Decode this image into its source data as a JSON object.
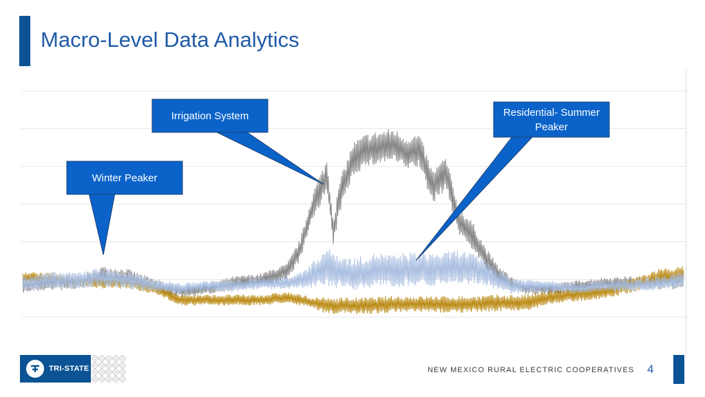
{
  "slide": {
    "title": "Macro-Level Data Analytics",
    "footer_text": "NEW MEXICO RURAL ELECTRIC COOPERATIVES",
    "page_number": "4",
    "logo_text": "TRI-STATE",
    "accent_color": "#0b5394"
  },
  "chart_data": {
    "type": "line",
    "title": "",
    "xlabel": "",
    "ylabel": "",
    "grid": true,
    "legend": "none",
    "ylim": [
      0,
      8
    ],
    "x_range": [
      0,
      100
    ],
    "series": [
      {
        "color": "#808080",
        "x": [
          0,
          4,
          8,
          12,
          16,
          20,
          24,
          28,
          32,
          36,
          40,
          42,
          44,
          46,
          47,
          48,
          50,
          52,
          54,
          56,
          58,
          60,
          62,
          64,
          66,
          68,
          70,
          72,
          74,
          76,
          80,
          84,
          88,
          92,
          96,
          100
        ],
        "y": [
          1.1,
          1.2,
          1.2,
          1.5,
          1.4,
          1.1,
          0.9,
          1.0,
          1.2,
          1.3,
          1.6,
          2.4,
          4.0,
          5.0,
          3.0,
          4.3,
          5.6,
          5.9,
          6.0,
          6.1,
          5.8,
          5.9,
          4.6,
          5.1,
          3.4,
          2.9,
          2.1,
          1.5,
          1.2,
          1.0,
          1.0,
          1.1,
          1.2,
          1.2,
          1.2,
          1.3
        ],
        "amplitude": [
          0.25,
          0.25,
          0.25,
          0.3,
          0.3,
          0.25,
          0.2,
          0.2,
          0.25,
          0.25,
          0.3,
          0.4,
          0.5,
          0.6,
          0.5,
          0.6,
          0.6,
          0.6,
          0.6,
          0.6,
          0.6,
          0.6,
          0.6,
          0.6,
          0.5,
          0.5,
          0.4,
          0.3,
          0.25,
          0.2,
          0.2,
          0.2,
          0.2,
          0.25,
          0.25,
          0.3
        ]
      },
      {
        "color": "#b8860b",
        "x": [
          0,
          4,
          8,
          12,
          16,
          20,
          22,
          24,
          28,
          32,
          36,
          40,
          44,
          46,
          48,
          52,
          56,
          60,
          64,
          68,
          72,
          76,
          80,
          84,
          88,
          92,
          96,
          100
        ],
        "y": [
          1.4,
          1.4,
          1.3,
          1.2,
          1.2,
          1.0,
          0.8,
          0.6,
          0.6,
          0.6,
          0.6,
          0.7,
          0.5,
          0.4,
          0.4,
          0.4,
          0.45,
          0.45,
          0.45,
          0.45,
          0.5,
          0.5,
          0.7,
          0.8,
          0.9,
          1.1,
          1.4,
          1.5
        ],
        "amplitude": [
          0.2,
          0.2,
          0.2,
          0.2,
          0.2,
          0.2,
          0.2,
          0.2,
          0.2,
          0.2,
          0.2,
          0.2,
          0.2,
          0.3,
          0.3,
          0.3,
          0.3,
          0.3,
          0.3,
          0.3,
          0.3,
          0.3,
          0.25,
          0.25,
          0.25,
          0.25,
          0.3,
          0.3
        ]
      },
      {
        "color": "#a6bce0",
        "x": [
          0,
          4,
          8,
          12,
          16,
          20,
          24,
          28,
          32,
          36,
          40,
          42,
          44,
          46,
          48,
          50,
          52,
          54,
          56,
          58,
          60,
          62,
          64,
          66,
          68,
          70,
          72,
          74,
          76,
          80,
          84,
          88,
          92,
          96,
          100
        ],
        "y": [
          1.2,
          1.3,
          1.3,
          1.4,
          1.3,
          1.1,
          1.0,
          1.1,
          1.1,
          1.2,
          1.2,
          1.3,
          1.5,
          1.8,
          1.6,
          1.5,
          1.6,
          1.7,
          1.6,
          1.7,
          1.7,
          1.7,
          1.7,
          1.8,
          1.7,
          1.6,
          1.3,
          1.1,
          1.1,
          1.1,
          1.0,
          1.1,
          1.1,
          1.2,
          1.3
        ],
        "amplitude": [
          0.3,
          0.3,
          0.3,
          0.35,
          0.3,
          0.25,
          0.2,
          0.2,
          0.2,
          0.2,
          0.25,
          0.3,
          0.5,
          0.7,
          0.6,
          0.6,
          0.6,
          0.6,
          0.6,
          0.6,
          0.6,
          0.6,
          0.6,
          0.6,
          0.55,
          0.5,
          0.4,
          0.3,
          0.25,
          0.2,
          0.2,
          0.2,
          0.2,
          0.25,
          0.3
        ]
      }
    ],
    "annotations": [
      {
        "label_lines": [
          "Irrigation System"
        ],
        "target_x": 45.5,
        "target_y": 4.7
      },
      {
        "label_lines": [
          "Residential- Summer",
          "Peaker"
        ],
        "target_x": 59.5,
        "target_y": 2.0
      },
      {
        "label_lines": [
          "Winter Peaker"
        ],
        "target_x": 12.2,
        "target_y": 2.2
      }
    ]
  }
}
